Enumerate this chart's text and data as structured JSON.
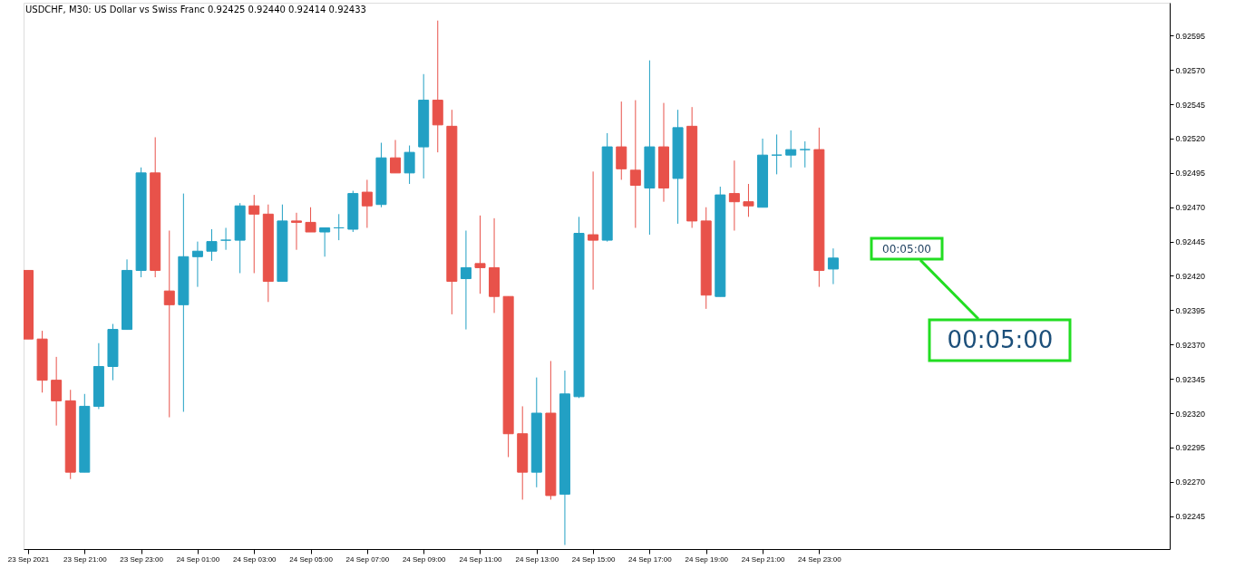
{
  "chart_data": {
    "type": "candlestick",
    "title": "USDCHF, M30:  US Dollar vs Swiss Franc  0.92425 0.92440 0.92414 0.92433",
    "x": [
      "2021-09-23T19:00",
      "2021-09-23T19:30",
      "2021-09-23T20:00",
      "2021-09-23T20:30",
      "2021-09-23T21:00",
      "2021-09-23T21:30",
      "2021-09-23T22:00",
      "2021-09-23T22:30",
      "2021-09-23T23:00",
      "2021-09-23T23:30",
      "2021-09-24T00:00",
      "2021-09-24T00:30",
      "2021-09-24T01:00",
      "2021-09-24T01:30",
      "2021-09-24T02:00",
      "2021-09-24T02:30",
      "2021-09-24T03:00",
      "2021-09-24T03:30",
      "2021-09-24T04:00",
      "2021-09-24T04:30",
      "2021-09-24T05:00",
      "2021-09-24T05:30",
      "2021-09-24T06:00",
      "2021-09-24T06:30",
      "2021-09-24T07:00",
      "2021-09-24T07:30",
      "2021-09-24T08:00",
      "2021-09-24T08:30",
      "2021-09-24T09:00",
      "2021-09-24T09:30",
      "2021-09-24T10:00",
      "2021-09-24T10:30",
      "2021-09-24T11:00",
      "2021-09-24T11:30",
      "2021-09-24T12:00",
      "2021-09-24T12:30",
      "2021-09-24T13:00",
      "2021-09-24T13:30",
      "2021-09-24T14:00",
      "2021-09-24T14:30",
      "2021-09-24T15:00",
      "2021-09-24T15:30",
      "2021-09-24T16:00",
      "2021-09-24T16:30",
      "2021-09-24T17:00",
      "2021-09-24T17:30",
      "2021-09-24T18:00",
      "2021-09-24T18:30",
      "2021-09-24T19:00",
      "2021-09-24T19:30",
      "2021-09-24T20:00",
      "2021-09-24T20:30",
      "2021-09-24T21:00",
      "2021-09-24T21:30",
      "2021-09-24T22:00",
      "2021-09-24T22:30",
      "2021-09-24T23:00",
      "2021-09-24T23:30"
    ],
    "ohlc": [
      [
        0.92424,
        0.92424,
        0.92374,
        0.92374
      ],
      [
        0.92374,
        0.9238,
        0.92335,
        0.92344
      ],
      [
        0.92344,
        0.92361,
        0.92311,
        0.92329
      ],
      [
        0.92329,
        0.92337,
        0.92272,
        0.92277
      ],
      [
        0.92277,
        0.92334,
        0.92277,
        0.92325
      ],
      [
        0.92325,
        0.92371,
        0.92323,
        0.92354
      ],
      [
        0.92354,
        0.92385,
        0.92344,
        0.92381
      ],
      [
        0.92381,
        0.92432,
        0.92381,
        0.92424
      ],
      [
        0.92424,
        0.92499,
        0.92419,
        0.92495
      ],
      [
        0.92495,
        0.92521,
        0.92419,
        0.92424
      ],
      [
        0.92409,
        0.92453,
        0.92317,
        0.92399
      ],
      [
        0.92399,
        0.9248,
        0.92321,
        0.92434
      ],
      [
        0.92434,
        0.92445,
        0.92412,
        0.92438
      ],
      [
        0.92438,
        0.92454,
        0.92431,
        0.92445
      ],
      [
        0.92446,
        0.92455,
        0.92439,
        0.92446
      ],
      [
        0.92446,
        0.92473,
        0.92422,
        0.92471
      ],
      [
        0.92471,
        0.92479,
        0.92422,
        0.92465
      ],
      [
        0.92465,
        0.92472,
        0.92401,
        0.92416
      ],
      [
        0.92416,
        0.92472,
        0.92416,
        0.9246
      ],
      [
        0.9246,
        0.92466,
        0.92439,
        0.92459
      ],
      [
        0.92459,
        0.9247,
        0.92452,
        0.92452
      ],
      [
        0.92452,
        0.92455,
        0.92434,
        0.92455
      ],
      [
        0.92455,
        0.92465,
        0.92446,
        0.92455
      ],
      [
        0.92454,
        0.92482,
        0.92452,
        0.9248
      ],
      [
        0.92481,
        0.9249,
        0.92455,
        0.92471
      ],
      [
        0.92472,
        0.92517,
        0.9247,
        0.92506
      ],
      [
        0.92506,
        0.92519,
        0.92495,
        0.92495
      ],
      [
        0.92495,
        0.92515,
        0.92487,
        0.9251
      ],
      [
        0.92514,
        0.92567,
        0.92491,
        0.92548
      ],
      [
        0.92548,
        0.92606,
        0.9251,
        0.9253
      ],
      [
        0.92529,
        0.92541,
        0.92392,
        0.92416
      ],
      [
        0.92418,
        0.92453,
        0.92381,
        0.92426
      ],
      [
        0.92429,
        0.92464,
        0.92407,
        0.92426
      ],
      [
        0.92426,
        0.92462,
        0.92393,
        0.92405
      ],
      [
        0.92405,
        0.92405,
        0.92288,
        0.92305
      ],
      [
        0.92305,
        0.92325,
        0.92257,
        0.92277
      ],
      [
        0.92277,
        0.92346,
        0.92266,
        0.9232
      ],
      [
        0.9232,
        0.92358,
        0.92257,
        0.9226
      ],
      [
        0.92261,
        0.92351,
        0.92224,
        0.92334
      ],
      [
        0.92332,
        0.92463,
        0.92331,
        0.92451
      ],
      [
        0.9245,
        0.92496,
        0.9241,
        0.92446
      ],
      [
        0.92446,
        0.92524,
        0.92445,
        0.92514
      ],
      [
        0.92514,
        0.92547,
        0.9249,
        0.92498
      ],
      [
        0.92497,
        0.92548,
        0.92455,
        0.92486
      ],
      [
        0.92484,
        0.92577,
        0.9245,
        0.92514
      ],
      [
        0.92514,
        0.92546,
        0.92474,
        0.92484
      ],
      [
        0.92491,
        0.92541,
        0.92458,
        0.92528
      ],
      [
        0.92529,
        0.92543,
        0.92455,
        0.9246
      ],
      [
        0.9246,
        0.9247,
        0.92396,
        0.92406
      ],
      [
        0.92405,
        0.92485,
        0.92405,
        0.92479
      ],
      [
        0.9248,
        0.92504,
        0.92453,
        0.92474
      ],
      [
        0.92474,
        0.92487,
        0.92463,
        0.92471
      ],
      [
        0.9247,
        0.9252,
        0.9247,
        0.92508
      ],
      [
        0.92508,
        0.92523,
        0.92494,
        0.92508
      ],
      [
        0.92508,
        0.92526,
        0.92499,
        0.92512
      ],
      [
        0.92512,
        0.92518,
        0.92499,
        0.92512
      ],
      [
        0.92512,
        0.92528,
        0.92412,
        0.92424
      ],
      [
        0.92425,
        0.9244,
        0.92414,
        0.92433
      ]
    ],
    "colors": [
      "#e8524a",
      "#e8524a",
      "#e8524a",
      "#e8524a",
      "#22a0c4",
      "#22a0c4",
      "#22a0c4",
      "#22a0c4",
      "#22a0c4",
      "#e8524a",
      "#e8524a",
      "#22a0c4",
      "#22a0c4",
      "#22a0c4",
      "#22a0c4",
      "#22a0c4",
      "#e8524a",
      "#e8524a",
      "#22a0c4",
      "#e8524a",
      "#e8524a",
      "#22a0c4",
      "#22a0c4",
      "#22a0c4",
      "#e8524a",
      "#22a0c4",
      "#e8524a",
      "#22a0c4",
      "#22a0c4",
      "#e8524a",
      "#e8524a",
      "#22a0c4",
      "#e8524a",
      "#e8524a",
      "#e8524a",
      "#e8524a",
      "#22a0c4",
      "#e8524a",
      "#22a0c4",
      "#22a0c4",
      "#e8524a",
      "#22a0c4",
      "#e8524a",
      "#e8524a",
      "#22a0c4",
      "#e8524a",
      "#22a0c4",
      "#e8524a",
      "#e8524a",
      "#22a0c4",
      "#e8524a",
      "#e8524a",
      "#22a0c4",
      "#22a0c4",
      "#22a0c4",
      "#22a0c4",
      "#e8524a",
      "#22a0c4"
    ],
    "xlim": [
      "2021-09-23T19:00",
      "2021-09-25T11:15"
    ],
    "xticks": [
      {
        "value": "2021-09-23T19:00",
        "label": "23 Sep 2021"
      },
      {
        "value": "2021-09-23T21:00",
        "label": "23 Sep 21:00"
      },
      {
        "value": "2021-09-23T23:00",
        "label": "23 Sep 23:00"
      },
      {
        "value": "2021-09-24T01:00",
        "label": "24 Sep 01:00"
      },
      {
        "value": "2021-09-24T03:00",
        "label": "24 Sep 03:00"
      },
      {
        "value": "2021-09-24T05:00",
        "label": "24 Sep 05:00"
      },
      {
        "value": "2021-09-24T07:00",
        "label": "24 Sep 07:00"
      },
      {
        "value": "2021-09-24T09:00",
        "label": "24 Sep 09:00"
      },
      {
        "value": "2021-09-24T11:00",
        "label": "24 Sep 11:00"
      },
      {
        "value": "2021-09-24T13:00",
        "label": "24 Sep 13:00"
      },
      {
        "value": "2021-09-24T15:00",
        "label": "24 Sep 15:00"
      },
      {
        "value": "2021-09-24T17:00",
        "label": "24 Sep 17:00"
      },
      {
        "value": "2021-09-24T19:00",
        "label": "24 Sep 19:00"
      },
      {
        "value": "2021-09-24T21:00",
        "label": "24 Sep 21:00"
      },
      {
        "value": "2021-09-24T23:00",
        "label": "24 Sep 23:00"
      }
    ],
    "ylim": [
      0.92221,
      0.92619
    ],
    "yticks": [
      0.92245,
      {
        "value": 0.9227,
        "label": "0.92270"
      },
      0.92295,
      {
        "value": 0.9232,
        "label": "0.92320"
      },
      0.92345,
      {
        "value": 0.9237,
        "label": "0.92370"
      },
      0.92395,
      {
        "value": 0.9242,
        "label": "0.92420"
      },
      0.92445,
      {
        "value": 0.9247,
        "label": "0.92470"
      },
      0.92495,
      {
        "value": 0.9252,
        "label": "0.92520"
      },
      0.92545,
      {
        "value": 0.9257,
        "label": "0.92570"
      },
      0.92595
    ],
    "grid": false,
    "annotations": [
      "00:05:00",
      "00:05:00"
    ]
  }
}
